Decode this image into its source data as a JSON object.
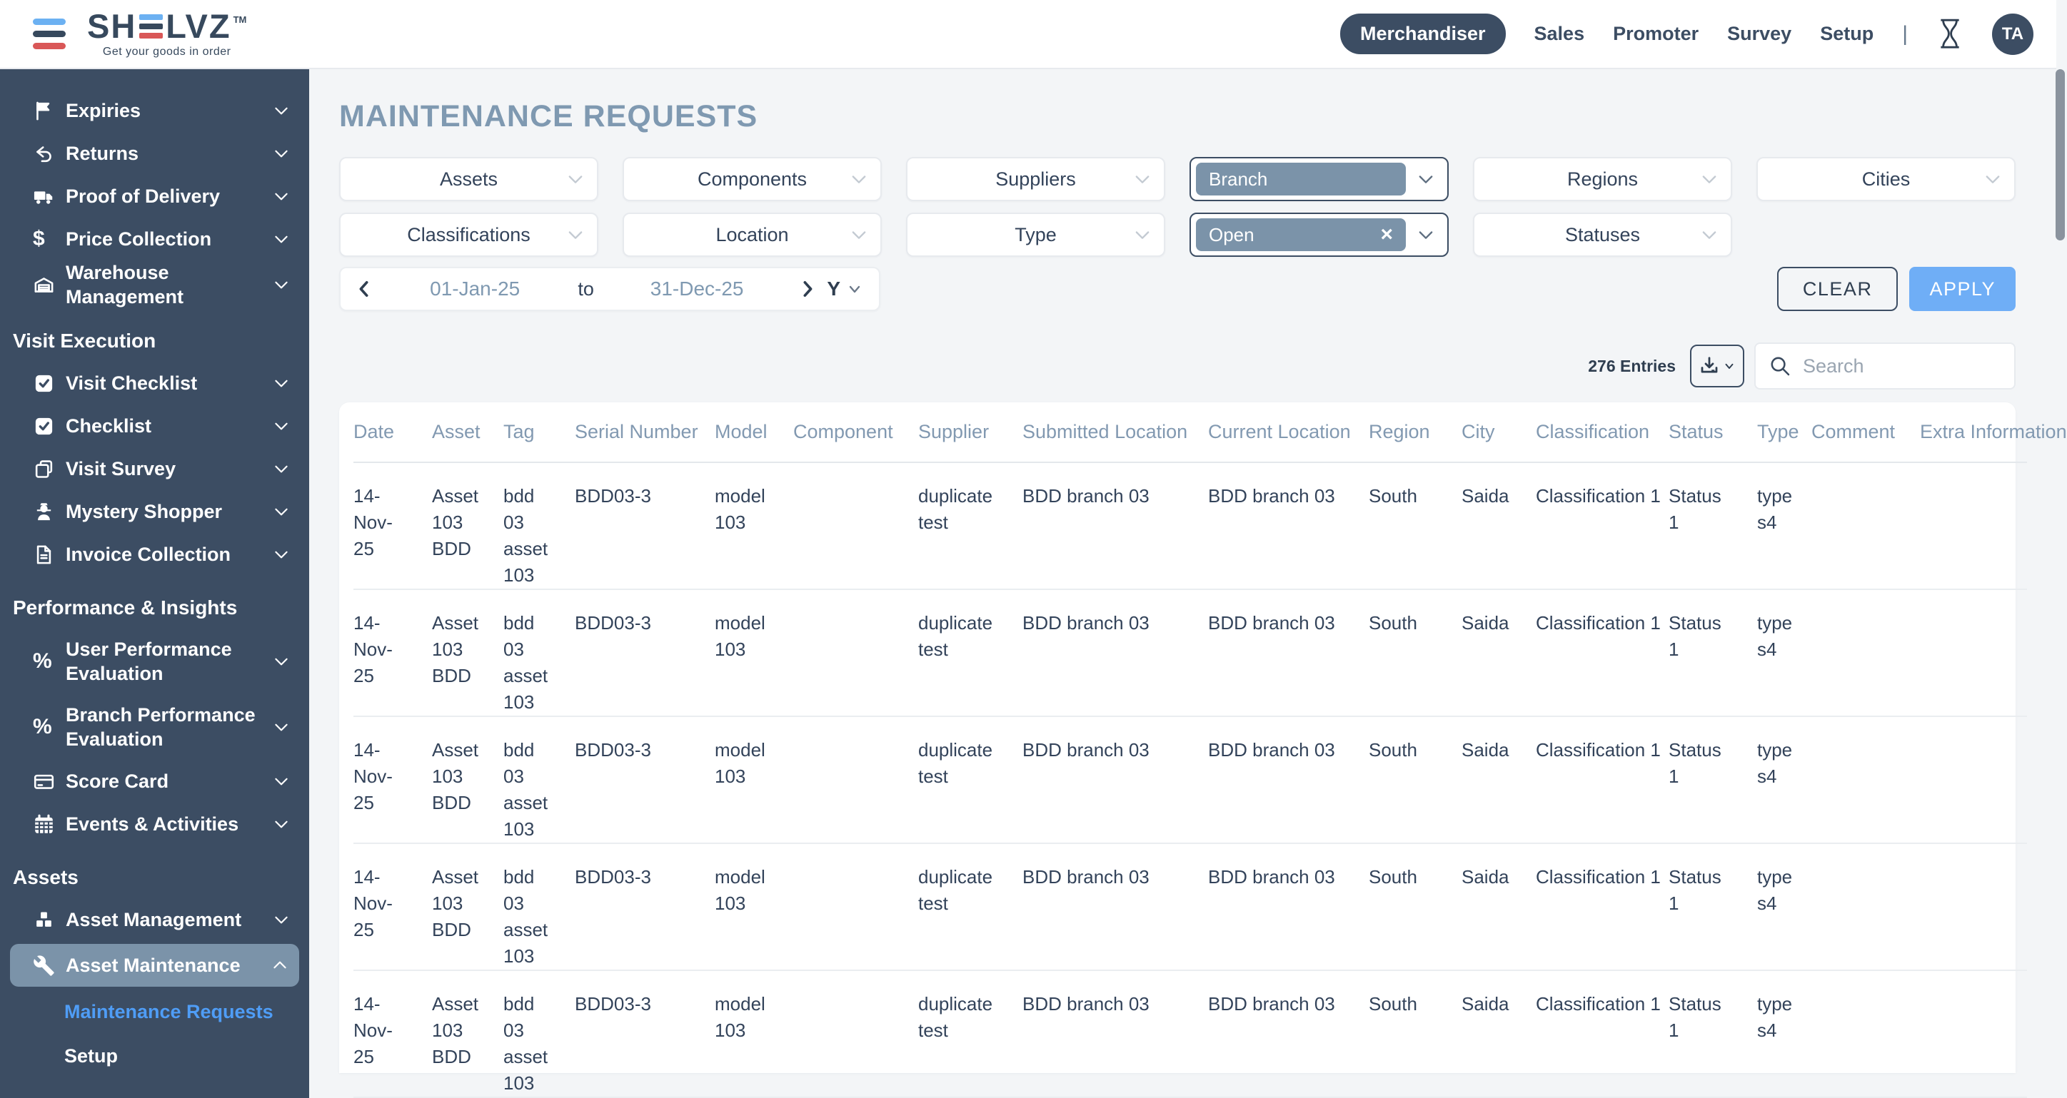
{
  "header": {
    "logo": {
      "part1": "SH",
      "part2": "LVZ",
      "tm": "TM",
      "tagline": "Get your goods in order"
    },
    "nav": [
      {
        "label": "Merchandiser",
        "active": true
      },
      {
        "label": "Sales",
        "active": false
      },
      {
        "label": "Promoter",
        "active": false
      },
      {
        "label": "Survey",
        "active": false
      },
      {
        "label": "Setup",
        "active": false
      }
    ],
    "divider": "|",
    "avatar": "TA"
  },
  "sidebar": {
    "sections": [
      {
        "heading": "",
        "items": [
          {
            "label": "Expiries",
            "icon": "flag-icon"
          },
          {
            "label": "Returns",
            "icon": "return-arrow-icon"
          },
          {
            "label": "Proof of Delivery",
            "icon": "truck-icon"
          },
          {
            "label": "Price Collection",
            "icon": "dollar-icon"
          },
          {
            "label": "Warehouse Management",
            "icon": "warehouse-icon"
          }
        ]
      },
      {
        "heading": "Visit Execution",
        "items": [
          {
            "label": "Visit Checklist",
            "icon": "checkbox-icon"
          },
          {
            "label": "Checklist",
            "icon": "checkbox-icon"
          },
          {
            "label": "Visit Survey",
            "icon": "copy-icon"
          },
          {
            "label": "Mystery Shopper",
            "icon": "spy-icon"
          },
          {
            "label": "Invoice Collection",
            "icon": "invoice-icon"
          }
        ]
      },
      {
        "heading": "Performance & Insights",
        "items": [
          {
            "label": "User Performance Evaluation",
            "icon": "percent-icon",
            "two_line": true
          },
          {
            "label": "Branch Performance Evaluation",
            "icon": "percent-icon",
            "two_line": true
          },
          {
            "label": "Score Card",
            "icon": "scorecard-icon"
          },
          {
            "label": "Events & Activities",
            "icon": "calendar-icon"
          }
        ]
      },
      {
        "heading": "Assets",
        "items": [
          {
            "label": "Asset Management",
            "icon": "cubes-icon"
          },
          {
            "label": "Asset Maintenance",
            "icon": "wrench-icon",
            "active": true,
            "expanded": true,
            "children": [
              {
                "label": "Maintenance Requests",
                "active": true
              },
              {
                "label": "Setup",
                "active": false
              }
            ]
          }
        ]
      }
    ]
  },
  "page": {
    "title": "MAINTENANCE REQUESTS"
  },
  "filters": {
    "row1": [
      {
        "label": "Assets",
        "type": "plain"
      },
      {
        "label": "Components",
        "type": "plain"
      },
      {
        "label": "Suppliers",
        "type": "plain"
      },
      {
        "label": "Branch",
        "type": "chip",
        "clearable": false
      },
      {
        "label": "Regions",
        "type": "plain"
      },
      {
        "label": "Cities",
        "type": "plain"
      }
    ],
    "row2": [
      {
        "label": "Classifications",
        "type": "plain"
      },
      {
        "label": "Location",
        "type": "plain"
      },
      {
        "label": "Type",
        "type": "plain"
      },
      {
        "label": "Open",
        "type": "chip",
        "clearable": true
      },
      {
        "label": "Statuses",
        "type": "plain"
      }
    ],
    "date_range": {
      "from": "01-Jan-25",
      "to_label": "to",
      "to": "31-Dec-25",
      "period": "Y"
    },
    "clear_label": "CLEAR",
    "apply_label": "APPLY"
  },
  "toolbar": {
    "entries": "276 Entries",
    "search_placeholder": "Search"
  },
  "table": {
    "columns": [
      {
        "key": "date",
        "label": "Date"
      },
      {
        "key": "asset",
        "label": "Asset"
      },
      {
        "key": "tag",
        "label": "Tag"
      },
      {
        "key": "serial",
        "label": "Serial Number"
      },
      {
        "key": "model",
        "label": "Model"
      },
      {
        "key": "component",
        "label": "Component"
      },
      {
        "key": "supplier",
        "label": "Supplier"
      },
      {
        "key": "submitted_location",
        "label": "Submitted Location"
      },
      {
        "key": "current_location",
        "label": "Current Location"
      },
      {
        "key": "region",
        "label": "Region"
      },
      {
        "key": "city",
        "label": "City"
      },
      {
        "key": "classification",
        "label": "Classification"
      },
      {
        "key": "status",
        "label": "Status"
      },
      {
        "key": "type",
        "label": "Type"
      },
      {
        "key": "comment",
        "label": "Comment"
      },
      {
        "key": "extra_information",
        "label": "Extra Information"
      }
    ],
    "rows": [
      {
        "date": "14-Nov-25",
        "asset": "Asset 103 BDD",
        "tag": "bdd 03 asset 103",
        "serial": "BDD03-3",
        "model": "model 103",
        "component": "",
        "supplier": "duplicate test",
        "submitted_location": "BDD branch 03",
        "current_location": "BDD branch 03",
        "region": "South",
        "city": "Saida",
        "classification": "Classification 1",
        "status": "Status 1",
        "type": "type s4",
        "comment": "",
        "extra_information": ""
      },
      {
        "date": "14-Nov-25",
        "asset": "Asset 103 BDD",
        "tag": "bdd 03 asset 103",
        "serial": "BDD03-3",
        "model": "model 103",
        "component": "",
        "supplier": "duplicate test",
        "submitted_location": "BDD branch 03",
        "current_location": "BDD branch 03",
        "region": "South",
        "city": "Saida",
        "classification": "Classification 1",
        "status": "Status 1",
        "type": "type s4",
        "comment": "",
        "extra_information": ""
      },
      {
        "date": "14-Nov-25",
        "asset": "Asset 103 BDD",
        "tag": "bdd 03 asset 103",
        "serial": "BDD03-3",
        "model": "model 103",
        "component": "",
        "supplier": "duplicate test",
        "submitted_location": "BDD branch 03",
        "current_location": "BDD branch 03",
        "region": "South",
        "city": "Saida",
        "classification": "Classification 1",
        "status": "Status 1",
        "type": "type s4",
        "comment": "",
        "extra_information": ""
      },
      {
        "date": "14-Nov-25",
        "asset": "Asset 103 BDD",
        "tag": "bdd 03 asset 103",
        "serial": "BDD03-3",
        "model": "model 103",
        "component": "",
        "supplier": "duplicate test",
        "submitted_location": "BDD branch 03",
        "current_location": "BDD branch 03",
        "region": "South",
        "city": "Saida",
        "classification": "Classification 1",
        "status": "Status 1",
        "type": "type s4",
        "comment": "",
        "extra_information": ""
      },
      {
        "date": "14-Nov-25",
        "asset": "Asset 103 BDD",
        "tag": "bdd 03 asset 103",
        "serial": "BDD03-3",
        "model": "model 103",
        "component": "",
        "supplier": "duplicate test",
        "submitted_location": "BDD branch 03",
        "current_location": "BDD branch 03",
        "region": "South",
        "city": "Saida",
        "classification": "Classification 1",
        "status": "Status 1",
        "type": "type s4",
        "comment": "",
        "extra_information": ""
      }
    ]
  },
  "colors": {
    "sidebar_bg": "#3C4D63",
    "chip_bg": "#7B93A9",
    "accent_blue": "#6FAEF6",
    "active_link_blue": "#4F9DF6",
    "logo_blue": "#6CB1F2",
    "logo_red": "#D95757",
    "title_muted": "#7F99B1"
  }
}
